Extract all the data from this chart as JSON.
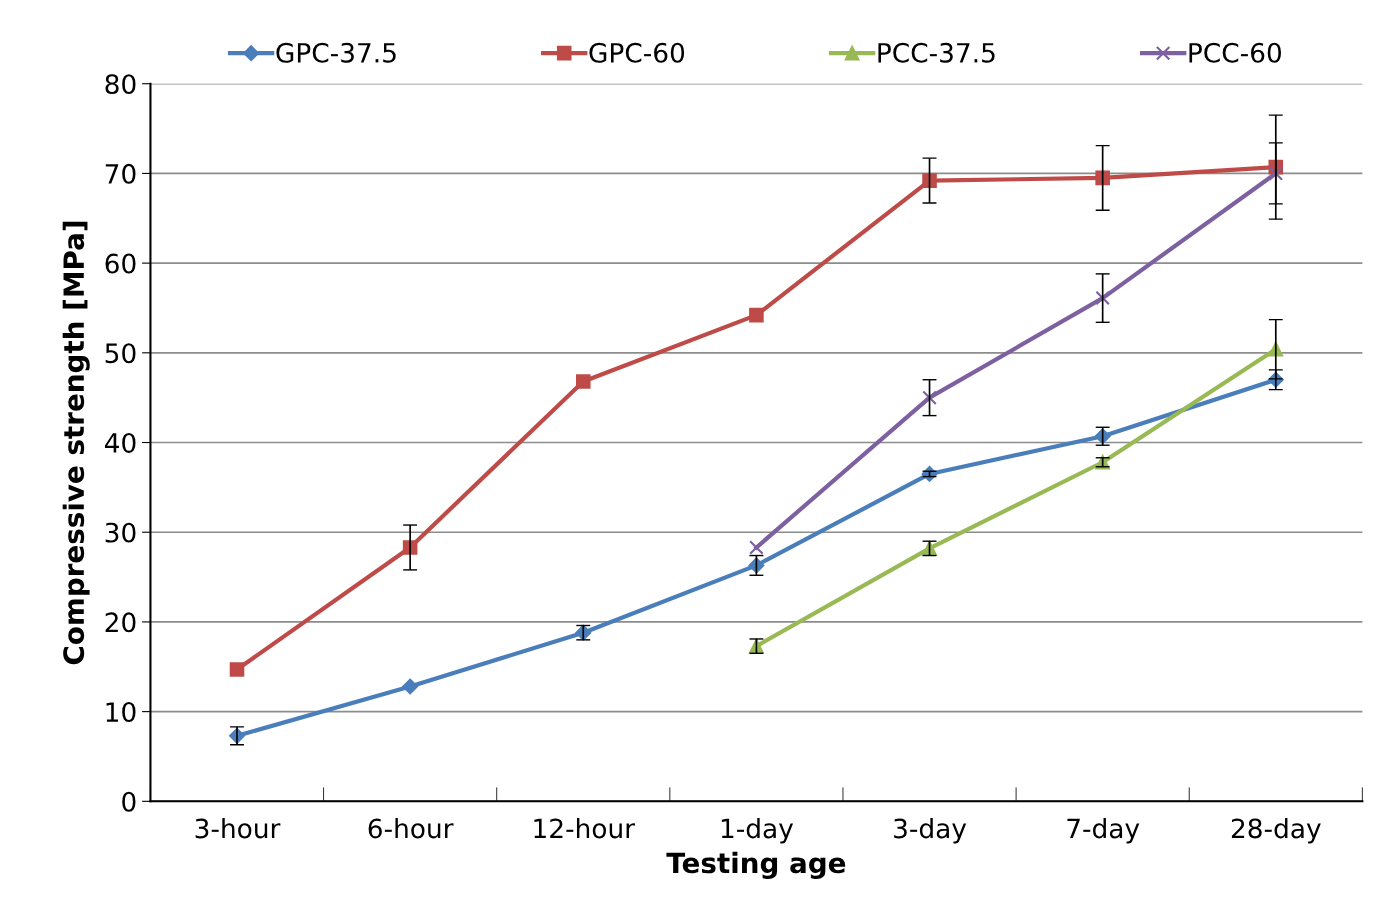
{
  "chart_data": {
    "type": "line",
    "xlabel": "Testing age",
    "ylabel": "Compressive strength [MPa]",
    "categories": [
      "3-hour",
      "6-hour",
      "12-hour",
      "1-day",
      "3-day",
      "7-day",
      "28-day"
    ],
    "series": [
      {
        "name": "GPC-37.5",
        "color": "#4a7ebb",
        "marker": "diamond",
        "values": [
          7.3,
          12.8,
          18.8,
          26.3,
          36.5,
          40.7,
          47.0
        ],
        "errors": [
          1.0,
          null,
          0.8,
          1.1,
          0.3,
          1.0,
          1.1
        ]
      },
      {
        "name": "GPC-60",
        "color": "#be4b48",
        "marker": "square",
        "values": [
          14.7,
          28.3,
          46.8,
          54.2,
          69.2,
          69.5,
          70.7
        ],
        "errors": [
          null,
          2.5,
          null,
          null,
          2.5,
          3.6,
          5.8
        ]
      },
      {
        "name": "PCC-37.5",
        "color": "#98b954",
        "marker": "triangle",
        "values": [
          null,
          null,
          null,
          17.3,
          28.2,
          37.8,
          50.4
        ],
        "errors": [
          null,
          null,
          null,
          0.8,
          0.8,
          0.5,
          3.3
        ]
      },
      {
        "name": "PCC-60",
        "color": "#7d60a0",
        "marker": "cross",
        "values": [
          null,
          null,
          null,
          28.3,
          45.0,
          56.1,
          70.0
        ],
        "errors": [
          null,
          null,
          null,
          null,
          2.0,
          2.7,
          3.4
        ]
      }
    ],
    "ylim": [
      0,
      80
    ],
    "yticks": [
      0,
      10,
      20,
      30,
      40,
      50,
      60,
      70,
      80
    ],
    "grid": "y",
    "legend": "top",
    "line_style": "solid"
  }
}
